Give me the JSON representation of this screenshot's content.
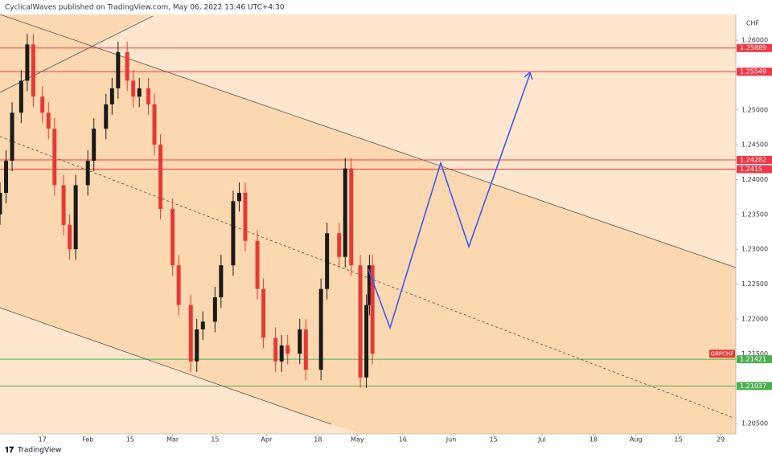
{
  "header": {
    "text": "CyclicalWaves published on TradingView.com, May 06, 2022 13:46 UTC+4:30"
  },
  "footer": {
    "brand": "TradingView"
  },
  "chart_data": {
    "type": "candlestick",
    "currency": "CHF",
    "symbol": "GBPCHF",
    "up_color": "#1a1a1a",
    "down_color": "#e53935",
    "x": [
      "2022-01-03",
      "2022-01-05",
      "2022-01-07",
      "2022-01-10",
      "2022-01-12",
      "2022-01-14",
      "2022-01-17",
      "2022-01-19",
      "2022-01-21",
      "2022-01-24",
      "2022-01-26",
      "2022-01-28",
      "2022-02-01",
      "2022-02-03",
      "2022-02-07",
      "2022-02-09",
      "2022-02-11",
      "2022-02-14",
      "2022-02-16",
      "2022-02-18",
      "2022-02-21",
      "2022-02-23",
      "2022-02-25",
      "2022-03-01",
      "2022-03-03",
      "2022-03-07",
      "2022-03-09",
      "2022-03-11",
      "2022-03-15",
      "2022-03-17",
      "2022-03-21",
      "2022-03-23",
      "2022-03-25",
      "2022-03-29",
      "2022-03-31",
      "2022-04-04",
      "2022-04-06",
      "2022-04-08",
      "2022-04-12",
      "2022-04-14",
      "2022-04-19",
      "2022-04-21",
      "2022-04-25",
      "2022-04-27",
      "2022-04-29",
      "2022-05-02",
      "2022-05-04",
      "2022-05-05",
      "2022-05-06"
    ],
    "opens": [
      1.235,
      1.2381,
      1.2427,
      1.2496,
      1.2542,
      1.2594,
      1.2519,
      1.2496,
      1.2473,
      1.2392,
      1.2335,
      1.23,
      1.2392,
      1.2427,
      1.2473,
      1.2508,
      1.2531,
      1.2583,
      1.2542,
      1.2519,
      1.2531,
      1.2508,
      1.245,
      1.2358,
      1.2277,
      1.222,
      1.2139,
      1.2185,
      1.2196,
      1.2231,
      1.2277,
      1.2369,
      1.2381,
      1.2312,
      1.2243,
      1.2173,
      1.2139,
      1.2162,
      1.215,
      1.2185,
      1.2127,
      1.2243,
      1.2323,
      1.2289,
      1.2416,
      1.2277,
      1.2116,
      1.222,
      1.2277
    ],
    "highs": [
      1.2396,
      1.2442,
      1.2511,
      1.2557,
      1.2609,
      1.2609,
      1.2534,
      1.2511,
      1.2488,
      1.2407,
      1.235,
      1.2407,
      1.2442,
      1.2488,
      1.2523,
      1.2546,
      1.2598,
      1.2598,
      1.2557,
      1.2546,
      1.2546,
      1.2523,
      1.2465,
      1.2373,
      1.2292,
      1.2235,
      1.22,
      1.2211,
      1.2246,
      1.2292,
      1.2384,
      1.2396,
      1.2396,
      1.2327,
      1.2258,
      1.2188,
      1.2177,
      1.2177,
      1.22,
      1.22,
      1.2258,
      1.2338,
      1.2338,
      1.2431,
      1.2431,
      1.2292,
      1.2235,
      1.2292,
      1.2292
    ],
    "lows": [
      1.2335,
      1.2366,
      1.2412,
      1.2481,
      1.2527,
      1.2504,
      1.2481,
      1.2458,
      1.2377,
      1.232,
      1.2285,
      1.2285,
      1.2377,
      1.2412,
      1.2458,
      1.2493,
      1.2516,
      1.2527,
      1.2504,
      1.2504,
      1.2493,
      1.2435,
      1.2343,
      1.2262,
      1.2205,
      1.2124,
      1.2124,
      1.217,
      1.2181,
      1.2216,
      1.2262,
      1.2354,
      1.2297,
      1.2228,
      1.2158,
      1.2124,
      1.2124,
      1.2135,
      1.2135,
      1.2112,
      1.2112,
      1.2228,
      1.2274,
      1.2274,
      1.2262,
      1.2101,
      1.2101,
      1.2205,
      1.2135
    ],
    "closes": [
      1.2381,
      1.2427,
      1.2496,
      1.2542,
      1.2594,
      1.2519,
      1.2496,
      1.2473,
      1.2392,
      1.2335,
      1.23,
      1.2392,
      1.2427,
      1.2473,
      1.2508,
      1.2531,
      1.2583,
      1.2542,
      1.2519,
      1.2531,
      1.2508,
      1.245,
      1.2358,
      1.2277,
      1.222,
      1.2139,
      1.2185,
      1.2196,
      1.2231,
      1.2277,
      1.2369,
      1.2381,
      1.2312,
      1.2243,
      1.2173,
      1.2139,
      1.2162,
      1.215,
      1.2185,
      1.2127,
      1.2243,
      1.2323,
      1.2289,
      1.2416,
      1.2277,
      1.2116,
      1.222,
      1.2277,
      1.215
    ],
    "levels": [
      {
        "value": 1.25889,
        "color": "#f23645"
      },
      {
        "value": 1.25549,
        "color": "#f23645"
      },
      {
        "value": 1.24282,
        "color": "#f23645"
      },
      {
        "value": 1.2415,
        "color": "#f23645"
      },
      {
        "value": 1.21421,
        "color": "#4caf50"
      },
      {
        "value": 1.21037,
        "color": "#4caf50"
      }
    ],
    "xlim": [
      "2022-01-03",
      "2022-09-03"
    ],
    "xticks": [
      {
        "value": "2022-01-17",
        "label": "17"
      },
      {
        "value": "2022-02-01",
        "label": "Feb"
      },
      {
        "value": "2022-02-15",
        "label": "15"
      },
      {
        "value": "2022-03-01",
        "label": "Mar"
      },
      {
        "value": "2022-03-15",
        "label": "15"
      },
      {
        "value": "2022-04-01",
        "label": "Apr"
      },
      {
        "value": "2022-04-18",
        "label": "18"
      },
      {
        "value": "2022-05-01",
        "label": "May"
      },
      {
        "value": "2022-05-16",
        "label": "16"
      },
      {
        "value": "2022-06-01",
        "label": "Jun"
      },
      {
        "value": "2022-06-15",
        "label": "15"
      },
      {
        "value": "2022-07-01",
        "label": "Jul"
      },
      {
        "value": "2022-07-18",
        "label": "18"
      },
      {
        "value": "2022-08-01",
        "label": "Aug"
      },
      {
        "value": "2022-08-15",
        "label": "15"
      },
      {
        "value": "2022-08-29",
        "label": "29"
      }
    ],
    "ylim": [
      1.2035,
      1.2637
    ],
    "yticks": [
      {
        "value": 1.26,
        "label": "1.26000"
      },
      {
        "value": 1.25,
        "label": "1.25000"
      },
      {
        "value": 1.245,
        "label": "1.24500"
      },
      {
        "value": 1.24,
        "label": "1.24000"
      },
      {
        "value": 1.235,
        "label": "1.23500"
      },
      {
        "value": 1.23,
        "label": "1.23000"
      },
      {
        "value": 1.225,
        "label": "1.22500"
      },
      {
        "value": 1.22,
        "label": "1.22000"
      },
      {
        "value": 1.215,
        "label": "1.21500"
      },
      {
        "value": 1.205,
        "label": "1.20500"
      }
    ]
  }
}
